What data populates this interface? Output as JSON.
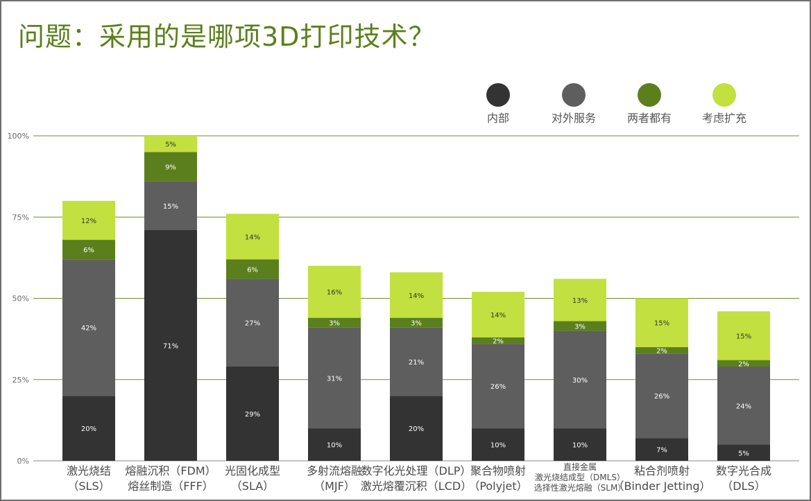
{
  "chart_data": {
    "type": "bar",
    "stacked": true,
    "title": "问题：采用的是哪项3D打印技术？",
    "xlabel": "",
    "ylabel": "",
    "ylim": [
      0,
      100
    ],
    "yticks": [
      "0%",
      "25%",
      "50%",
      "75%",
      "100%"
    ],
    "ytick_values": [
      0,
      25,
      50,
      75,
      100
    ],
    "gridlines": true,
    "legend_position": "top-right",
    "categories": [
      {
        "lines": [
          "激光烧结",
          "（SLS）"
        ],
        "size": "normal"
      },
      {
        "lines": [
          "熔融沉积（FDM）",
          "熔丝制造（FFF）"
        ],
        "size": "normal"
      },
      {
        "lines": [
          "光固化成型",
          "（SLA）"
        ],
        "size": "normal"
      },
      {
        "lines": [
          "多射流熔融",
          "（MJF）"
        ],
        "size": "normal"
      },
      {
        "lines": [
          "数字化光处理（DLP）",
          "激光熔覆沉积（LCD）"
        ],
        "size": "normal"
      },
      {
        "lines": [
          "聚合物喷射",
          "（Polyjet）"
        ],
        "size": "normal"
      },
      {
        "lines": [
          "直接金属",
          "激光烧结成型（DMLS）",
          "选择性激光熔融（SLM）"
        ],
        "size": "small"
      },
      {
        "lines": [
          "粘合剂喷射",
          "（Binder Jetting）"
        ],
        "size": "normal"
      },
      {
        "lines": [
          "数字光合成",
          "（DLS）"
        ],
        "size": "normal"
      }
    ],
    "series": [
      {
        "name": "内部",
        "color": "#333333",
        "label_color": "#ffffff",
        "values": [
          20,
          71,
          29,
          10,
          20,
          10,
          10,
          7,
          5
        ]
      },
      {
        "name": "对外服务",
        "color": "#5e5e5e",
        "label_color": "#ffffff",
        "values": [
          42,
          15,
          27,
          31,
          21,
          26,
          30,
          26,
          24
        ]
      },
      {
        "name": "两者都有",
        "color": "#5b7f1d",
        "label_color": "#ffffff",
        "values": [
          6,
          9,
          6,
          3,
          3,
          2,
          3,
          2,
          2
        ]
      },
      {
        "name": "考虑扩充",
        "color": "#c2e03f",
        "label_color": "#333333",
        "values": [
          12,
          5,
          14,
          16,
          14,
          14,
          13,
          15,
          15
        ]
      }
    ],
    "grid_color": "#6d8f2c"
  }
}
